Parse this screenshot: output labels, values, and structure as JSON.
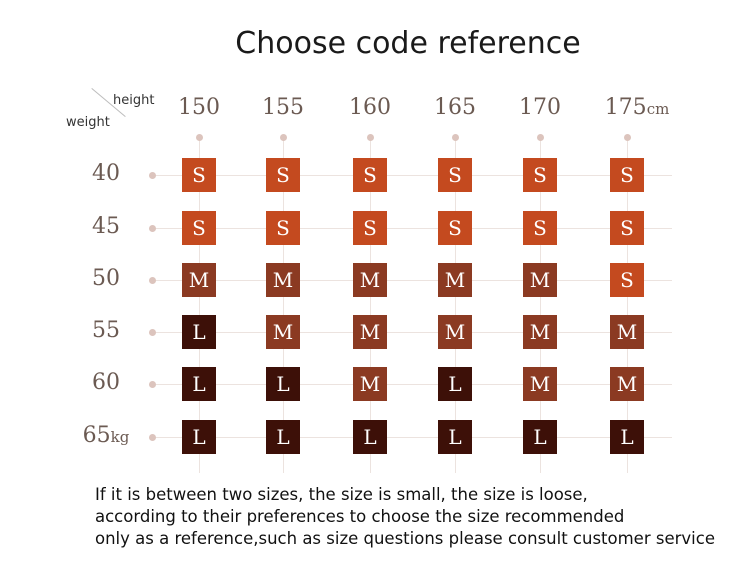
{
  "title": "Choose code reference",
  "axis": {
    "height_label": "height",
    "weight_label": "weight"
  },
  "heights": [
    "150",
    "155",
    "160",
    "165",
    "170",
    "175"
  ],
  "height_unit": "cm",
  "weights": [
    "40",
    "45",
    "50",
    "55",
    "60",
    "65"
  ],
  "weight_unit": "kg",
  "size_colors": {
    "S": "#c44a1f",
    "M": "#8b3a22",
    "L": "#3d1008"
  },
  "grid": [
    [
      "S",
      "S",
      "S",
      "S",
      "S",
      "S"
    ],
    [
      "S",
      "S",
      "S",
      "S",
      "S",
      "S"
    ],
    [
      "M",
      "M",
      "M",
      "M",
      "M",
      "S"
    ],
    [
      "L",
      "M",
      "M",
      "M",
      "M",
      "M"
    ],
    [
      "L",
      "L",
      "M",
      "L",
      "M",
      "M"
    ],
    [
      "L",
      "L",
      "L",
      "L",
      "L",
      "L"
    ]
  ],
  "note_lines": [
    "If it is between two sizes, the size is small, the size is loose,",
    "according to their preferences to choose the size recommended",
    "only as a reference,such as size questions please consult customer service"
  ]
}
